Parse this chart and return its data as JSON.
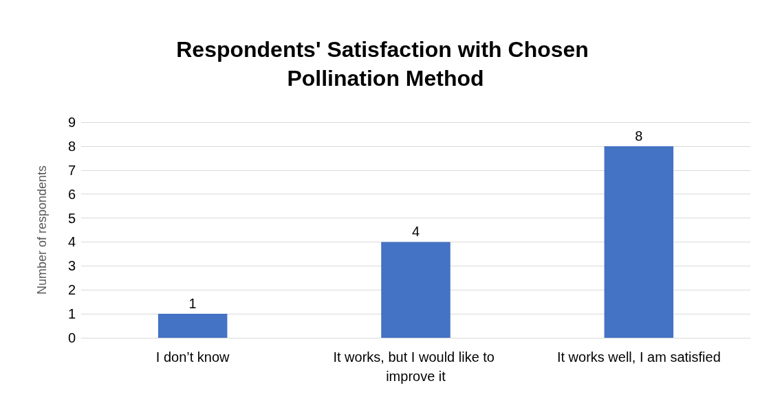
{
  "chart_data": {
    "type": "bar",
    "title": "Respondents' Satisfaction with Chosen Pollination Method",
    "ylabel": "Number of respondents",
    "categories": [
      "I don’t know",
      "It works, but I would like to improve it",
      "It works well, I am satisfied"
    ],
    "values": [
      1,
      4,
      8
    ],
    "color": "#4472c4",
    "ylim": [
      0,
      9
    ],
    "yticks": [
      0,
      1,
      2,
      3,
      4,
      5,
      6,
      7,
      8,
      9
    ],
    "grid": "y",
    "data_labels": true
  }
}
